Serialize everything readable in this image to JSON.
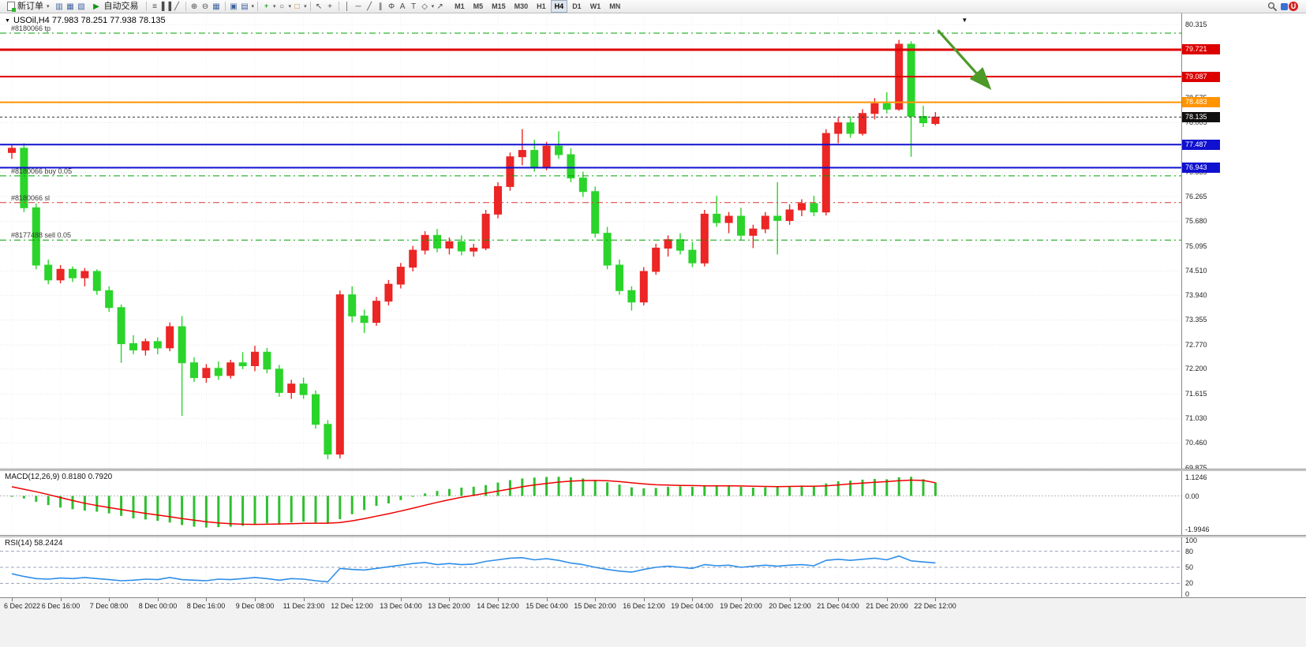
{
  "icons": {
    "caret": "▾",
    "collapse_tri": "▼",
    "shift_marker": "▼",
    "market_watch": "▥",
    "data_window": "▦",
    "navigator": "▧",
    "autotrade_play": "▶",
    "bars": "≡",
    "candles": "▌▐",
    "line_chart": "╱",
    "zoom_in": "⊕",
    "zoom_out": "⊖",
    "tile_windows": "▦",
    "new_chart": "▣",
    "profiles": "▤",
    "indicators_plus": "+",
    "periods_clock": "○",
    "templates": "□",
    "cursor": "↖",
    "crosshair": "+",
    "vline": "│",
    "hline": "─",
    "trendline": "╱",
    "channel": "∥",
    "fibonacci": "Φ",
    "text": "A",
    "label": "T",
    "shapes": "◇",
    "arrow_tool": "↗",
    "account_badge": "U"
  },
  "toolbar": {
    "new_order_label": "新订单",
    "autotrade_label": "自动交易",
    "timeframes": [
      "M1",
      "M5",
      "M15",
      "M30",
      "H1",
      "H4",
      "D1",
      "W1",
      "MN"
    ],
    "active_timeframe": "H4"
  },
  "chart": {
    "symbol_title": "USOil,H4 77.983 78.251 77.938 78.135"
  },
  "chart_data": {
    "type": "candlestick",
    "symbol": "USOil",
    "period": "H4",
    "last_bar_ohlc": [
      77.983,
      78.251,
      77.938,
      78.135
    ],
    "current_price": 78.135,
    "colors": {
      "up": "#ec2525",
      "down": "#2bd42b"
    },
    "price_axis": {
      "max": 80.315,
      "min": 69.875,
      "labels": [
        {
          "text": "80.315",
          "value": 80.315
        },
        {
          "text": "78.575",
          "value": 78.575
        },
        {
          "text": "78.005",
          "value": 78.005
        },
        {
          "text": "77.420",
          "value": 77.42
        },
        {
          "text": "76.835",
          "value": 76.835
        },
        {
          "text": "76.265",
          "value": 76.265
        },
        {
          "text": "75.680",
          "value": 75.68
        },
        {
          "text": "75.095",
          "value": 75.095
        },
        {
          "text": "74.510",
          "value": 74.51
        },
        {
          "text": "73.940",
          "value": 73.94
        },
        {
          "text": "73.355",
          "value": 73.355
        },
        {
          "text": "72.770",
          "value": 72.77
        },
        {
          "text": "72.200",
          "value": 72.2
        },
        {
          "text": "71.615",
          "value": 71.615
        },
        {
          "text": "71.030",
          "value": 71.03
        },
        {
          "text": "70.460",
          "value": 70.46
        },
        {
          "text": "69.875",
          "value": 69.875
        }
      ],
      "grid": [
        80.315,
        79.73,
        79.145,
        78.575,
        78.005,
        77.42,
        76.835,
        76.265,
        75.68,
        75.095,
        74.51,
        73.94,
        73.355,
        72.77,
        72.2,
        71.615,
        71.03,
        70.46,
        69.875
      ]
    },
    "price_tags": [
      {
        "text": "79.721",
        "value": 79.721,
        "bg": "#dd0000"
      },
      {
        "text": "79.087",
        "value": 79.087,
        "bg": "#dd0000"
      },
      {
        "text": "78.483",
        "value": 78.483,
        "bg": "#ff9300"
      },
      {
        "text": "78.135",
        "value": 78.135,
        "bg": "#101010"
      },
      {
        "text": "77.487",
        "value": 77.487,
        "bg": "#1010d0"
      },
      {
        "text": "76.943",
        "value": 76.943,
        "bg": "#1010d0"
      }
    ],
    "hlines": [
      {
        "value": 79.721,
        "color": "#dd0000",
        "width": 3
      },
      {
        "value": 79.087,
        "color": "#dd0000",
        "width": 2
      },
      {
        "value": 78.483,
        "color": "#ff9300",
        "width": 2
      },
      {
        "value": 77.487,
        "color": "#1010d0",
        "width": 2
      },
      {
        "value": 76.943,
        "color": "#1010d0",
        "width": 2
      }
    ],
    "order_lines": [
      {
        "label": "#8180066 tp",
        "value": 80.11,
        "color": "#00a000",
        "dash": "8 4 2 4"
      },
      {
        "label": "#8180066 buy 0.05",
        "value": 76.75,
        "color": "#00a000",
        "dash": "8 4 2 4"
      },
      {
        "label": "#8180066 sl",
        "value": 76.12,
        "color": "#dd3333",
        "dash": "8 4 2 4"
      },
      {
        "label": "#8177488 sell 0.05",
        "value": 75.24,
        "color": "#00a000",
        "dash": "8 4 2 4"
      }
    ],
    "time_labels": [
      "6 Dec 2022",
      "6 Dec 16:00",
      "7 Dec 08:00",
      "8 Dec 00:00",
      "8 Dec 16:00",
      "9 Dec 08:00",
      "11 Dec 23:00",
      "12 Dec 12:00",
      "13 Dec 04:00",
      "13 Dec 20:00",
      "14 Dec 12:00",
      "15 Dec 04:00",
      "15 Dec 20:00",
      "16 Dec 12:00",
      "19 Dec 04:00",
      "19 Dec 20:00",
      "20 Dec 12:00",
      "21 Dec 04:00",
      "21 Dec 20:00",
      "22 Dec 12:00"
    ],
    "candles": [
      [
        77.3,
        77.48,
        77.15,
        77.4
      ],
      [
        77.4,
        77.52,
        75.9,
        76.0
      ],
      [
        76.0,
        76.1,
        74.55,
        74.65
      ],
      [
        74.65,
        74.78,
        74.2,
        74.3
      ],
      [
        74.3,
        74.65,
        74.22,
        74.55
      ],
      [
        74.55,
        74.62,
        74.25,
        74.35
      ],
      [
        74.35,
        74.58,
        74.15,
        74.5
      ],
      [
        74.5,
        74.55,
        73.95,
        74.05
      ],
      [
        74.05,
        74.15,
        73.55,
        73.65
      ],
      [
        73.65,
        73.72,
        72.35,
        72.8
      ],
      [
        72.8,
        73.0,
        72.55,
        72.65
      ],
      [
        72.65,
        72.92,
        72.52,
        72.85
      ],
      [
        72.85,
        72.95,
        72.55,
        72.7
      ],
      [
        72.7,
        73.3,
        72.62,
        73.2
      ],
      [
        73.2,
        73.45,
        71.1,
        72.35
      ],
      [
        72.35,
        72.48,
        71.9,
        72.0
      ],
      [
        72.0,
        72.32,
        71.88,
        72.22
      ],
      [
        72.22,
        72.38,
        71.95,
        72.05
      ],
      [
        72.05,
        72.42,
        71.98,
        72.35
      ],
      [
        72.35,
        72.6,
        72.2,
        72.28
      ],
      [
        72.28,
        72.75,
        72.15,
        72.6
      ],
      [
        72.6,
        72.7,
        72.1,
        72.2
      ],
      [
        72.2,
        72.3,
        71.55,
        71.65
      ],
      [
        71.65,
        71.95,
        71.5,
        71.85
      ],
      [
        71.85,
        72.0,
        71.5,
        71.6
      ],
      [
        71.6,
        71.7,
        70.8,
        70.9
      ],
      [
        70.9,
        71.0,
        70.08,
        70.2
      ],
      [
        70.2,
        74.05,
        70.1,
        73.95
      ],
      [
        73.95,
        74.15,
        73.3,
        73.45
      ],
      [
        73.45,
        73.6,
        73.05,
        73.3
      ],
      [
        73.3,
        73.9,
        73.22,
        73.8
      ],
      [
        73.8,
        74.3,
        73.7,
        74.2
      ],
      [
        74.2,
        74.7,
        74.1,
        74.6
      ],
      [
        74.6,
        75.1,
        74.5,
        75.0
      ],
      [
        75.0,
        75.45,
        74.9,
        75.35
      ],
      [
        75.35,
        75.5,
        74.95,
        75.05
      ],
      [
        75.05,
        75.3,
        74.9,
        75.2
      ],
      [
        75.2,
        75.35,
        74.88,
        74.98
      ],
      [
        74.98,
        75.15,
        74.85,
        75.05
      ],
      [
        75.05,
        75.95,
        75.0,
        75.85
      ],
      [
        75.85,
        76.6,
        75.75,
        76.5
      ],
      [
        76.5,
        77.3,
        76.4,
        77.2
      ],
      [
        77.2,
        77.85,
        77.0,
        77.35
      ],
      [
        77.35,
        77.6,
        76.85,
        76.95
      ],
      [
        76.95,
        77.55,
        76.88,
        77.45
      ],
      [
        77.45,
        77.8,
        77.15,
        77.25
      ],
      [
        77.25,
        77.4,
        76.6,
        76.7
      ],
      [
        76.7,
        76.85,
        76.25,
        76.38
      ],
      [
        76.38,
        76.5,
        75.3,
        75.4
      ],
      [
        75.4,
        75.55,
        74.55,
        74.65
      ],
      [
        74.65,
        74.78,
        73.95,
        74.05
      ],
      [
        74.05,
        74.15,
        73.58,
        73.78
      ],
      [
        73.78,
        74.6,
        73.7,
        74.5
      ],
      [
        74.5,
        75.15,
        74.42,
        75.05
      ],
      [
        75.05,
        75.35,
        74.85,
        75.25
      ],
      [
        75.25,
        75.4,
        74.9,
        75.0
      ],
      [
        75.0,
        75.2,
        74.6,
        74.7
      ],
      [
        74.7,
        75.95,
        74.62,
        75.85
      ],
      [
        75.85,
        76.28,
        75.55,
        75.65
      ],
      [
        75.65,
        75.9,
        75.4,
        75.8
      ],
      [
        75.8,
        76.0,
        75.25,
        75.35
      ],
      [
        75.35,
        75.6,
        75.05,
        75.5
      ],
      [
        75.5,
        75.9,
        75.4,
        75.8
      ],
      [
        75.8,
        76.6,
        74.9,
        75.7
      ],
      [
        75.7,
        76.08,
        75.6,
        75.95
      ],
      [
        75.95,
        76.2,
        75.8,
        76.1
      ],
      [
        76.1,
        76.28,
        75.8,
        75.9
      ],
      [
        75.9,
        77.85,
        75.82,
        77.75
      ],
      [
        77.75,
        78.12,
        77.52,
        78.0
      ],
      [
        78.0,
        78.15,
        77.65,
        77.75
      ],
      [
        77.75,
        78.32,
        77.7,
        78.22
      ],
      [
        78.22,
        78.58,
        78.08,
        78.45
      ],
      [
        78.45,
        78.72,
        78.22,
        78.32
      ],
      [
        78.32,
        79.95,
        78.28,
        79.85
      ],
      [
        79.85,
        79.92,
        77.2,
        78.15
      ],
      [
        78.15,
        78.4,
        77.9,
        78.0
      ],
      [
        77.983,
        78.251,
        77.938,
        78.135
      ]
    ],
    "macd": {
      "title": "MACD(12,26,9) 0.8180 0.7920",
      "range": [
        -2.3,
        1.4
      ],
      "values": [
        -0.05,
        -0.15,
        -0.35,
        -0.55,
        -0.7,
        -0.8,
        -0.88,
        -0.95,
        -1.05,
        -1.2,
        -1.35,
        -1.42,
        -1.5,
        -1.6,
        -1.75,
        -1.85,
        -1.9,
        -1.88,
        -1.85,
        -1.8,
        -1.72,
        -1.65,
        -1.68,
        -1.6,
        -1.55,
        -1.6,
        -1.65,
        -1.4,
        -1.1,
        -0.85,
        -0.6,
        -0.45,
        -0.25,
        -0.05,
        0.15,
        0.3,
        0.42,
        0.5,
        0.55,
        0.65,
        0.8,
        0.95,
        1.05,
        1.1,
        1.14,
        1.15,
        1.12,
        1.05,
        0.95,
        0.82,
        0.68,
        0.52,
        0.45,
        0.48,
        0.55,
        0.58,
        0.55,
        0.6,
        0.62,
        0.6,
        0.55,
        0.5,
        0.52,
        0.55,
        0.58,
        0.62,
        0.6,
        0.75,
        0.88,
        0.92,
        0.98,
        1.02,
        1.0,
        1.12,
        1.15,
        1.0,
        0.818
      ],
      "signal": [
        0.55,
        0.4,
        0.25,
        0.08,
        -0.1,
        -0.28,
        -0.44,
        -0.58,
        -0.7,
        -0.82,
        -0.94,
        -1.05,
        -1.15,
        -1.25,
        -1.36,
        -1.46,
        -1.55,
        -1.62,
        -1.67,
        -1.7,
        -1.71,
        -1.7,
        -1.69,
        -1.67,
        -1.65,
        -1.64,
        -1.64,
        -1.6,
        -1.5,
        -1.37,
        -1.22,
        -1.07,
        -0.91,
        -0.74,
        -0.56,
        -0.39,
        -0.23,
        -0.08,
        0.04,
        0.16,
        0.29,
        0.42,
        0.55,
        0.66,
        0.75,
        0.83,
        0.89,
        0.92,
        0.93,
        0.91,
        0.86,
        0.79,
        0.72,
        0.67,
        0.65,
        0.63,
        0.62,
        0.61,
        0.61,
        0.61,
        0.6,
        0.58,
        0.57,
        0.56,
        0.57,
        0.58,
        0.58,
        0.61,
        0.66,
        0.72,
        0.77,
        0.82,
        0.86,
        0.91,
        0.95,
        0.93,
        0.792
      ],
      "axis_labels": [
        {
          "text": "1.1246",
          "value": 1.1246
        },
        {
          "text": "0.00",
          "value": 0
        },
        {
          "text": "-1.9946",
          "value": -1.9946
        }
      ],
      "histogram_color": "#2fbf2f",
      "signal_color": "#ee0000"
    },
    "rsi": {
      "title": "RSI(14) 58.2424",
      "range": [
        0,
        100
      ],
      "levels": [
        80,
        50,
        20
      ],
      "values": [
        38,
        33,
        29,
        28,
        30,
        29,
        31,
        29,
        27,
        25,
        26,
        28,
        27,
        31,
        27,
        26,
        25,
        28,
        27,
        29,
        31,
        29,
        26,
        29,
        28,
        25,
        23,
        48,
        46,
        45,
        48,
        51,
        54,
        57,
        59,
        55,
        57,
        55,
        56,
        61,
        64,
        67,
        68,
        64,
        66,
        63,
        58,
        55,
        50,
        46,
        43,
        41,
        46,
        50,
        52,
        50,
        48,
        55,
        53,
        54,
        50,
        52,
        54,
        52,
        54,
        55,
        53,
        63,
        65,
        63,
        65,
        67,
        64,
        71,
        62,
        60,
        58.24
      ],
      "axis_labels": [
        {
          "text": "100",
          "value": 100
        },
        {
          "text": "80",
          "value": 80
        },
        {
          "text": "50",
          "value": 50
        },
        {
          "text": "20",
          "value": 20
        },
        {
          "text": "0",
          "value": 0
        }
      ],
      "line_color": "#2e8ee8"
    },
    "arrow": {
      "from": {
        "index": 76.2,
        "price": 80.18
      },
      "to": {
        "index": 80.4,
        "price": 78.84
      },
      "color": "#4c9a28"
    }
  }
}
